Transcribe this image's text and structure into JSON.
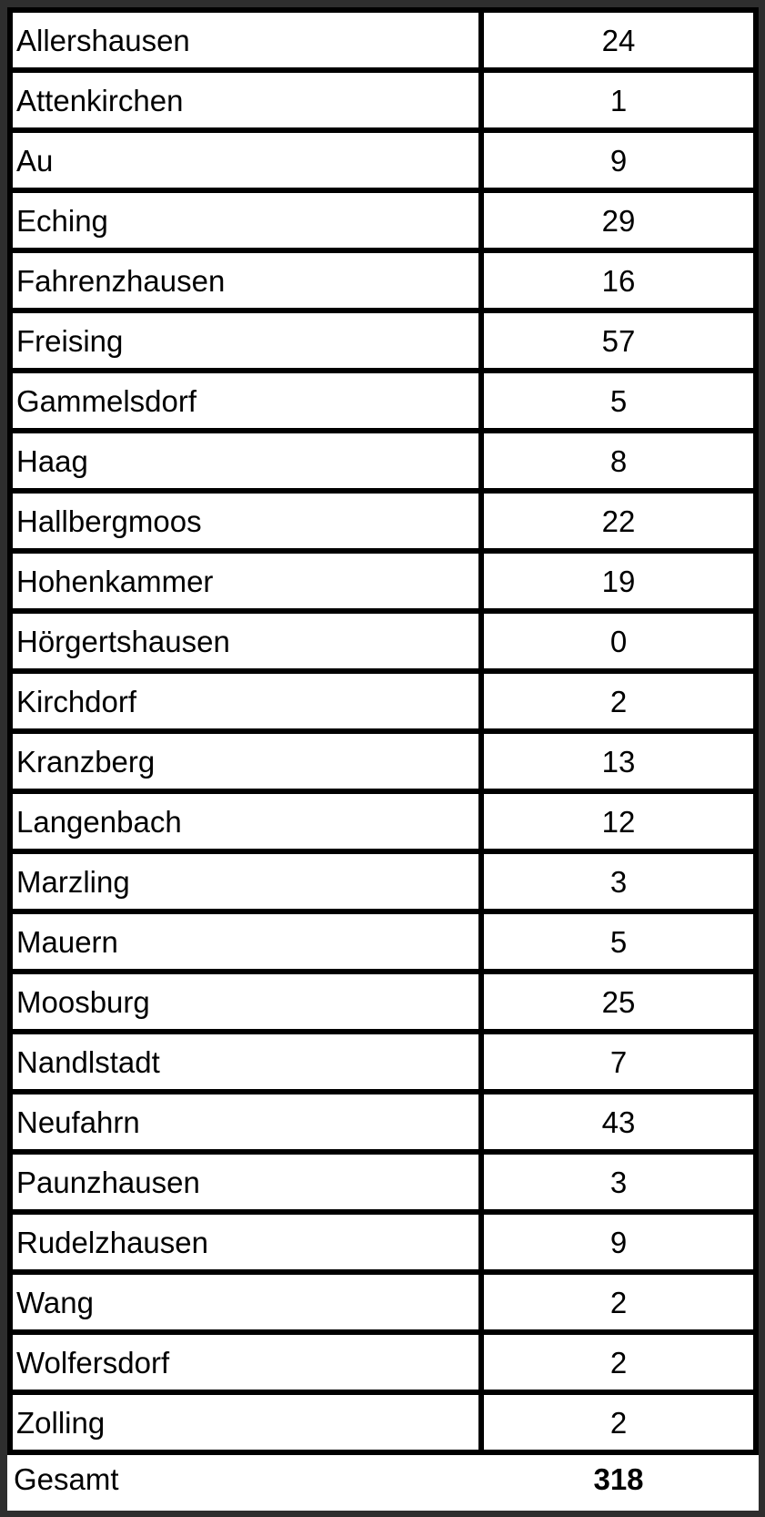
{
  "table": {
    "rows": [
      {
        "name": "Allershausen",
        "value": "24"
      },
      {
        "name": "Attenkirchen",
        "value": "1"
      },
      {
        "name": "Au",
        "value": "9"
      },
      {
        "name": "Eching",
        "value": "29"
      },
      {
        "name": "Fahrenzhausen",
        "value": "16"
      },
      {
        "name": "Freising",
        "value": "57"
      },
      {
        "name": "Gammelsdorf",
        "value": "5"
      },
      {
        "name": "Haag",
        "value": "8"
      },
      {
        "name": "Hallbergmoos",
        "value": "22"
      },
      {
        "name": "Hohenkammer",
        "value": "19"
      },
      {
        "name": "Hörgertshausen",
        "value": "0"
      },
      {
        "name": "Kirchdorf",
        "value": "2"
      },
      {
        "name": "Kranzberg",
        "value": "13"
      },
      {
        "name": "Langenbach",
        "value": "12"
      },
      {
        "name": "Marzling",
        "value": "3"
      },
      {
        "name": "Mauern",
        "value": "5"
      },
      {
        "name": "Moosburg",
        "value": "25"
      },
      {
        "name": "Nandlstadt",
        "value": "7"
      },
      {
        "name": "Neufahrn",
        "value": "43"
      },
      {
        "name": "Paunzhausen",
        "value": "3"
      },
      {
        "name": "Rudelzhausen",
        "value": "9"
      },
      {
        "name": "Wang",
        "value": "2"
      },
      {
        "name": "Wolfersdorf",
        "value": "2"
      },
      {
        "name": "Zolling",
        "value": "2"
      }
    ],
    "total": {
      "name": "Gesamt",
      "value": "318"
    }
  }
}
